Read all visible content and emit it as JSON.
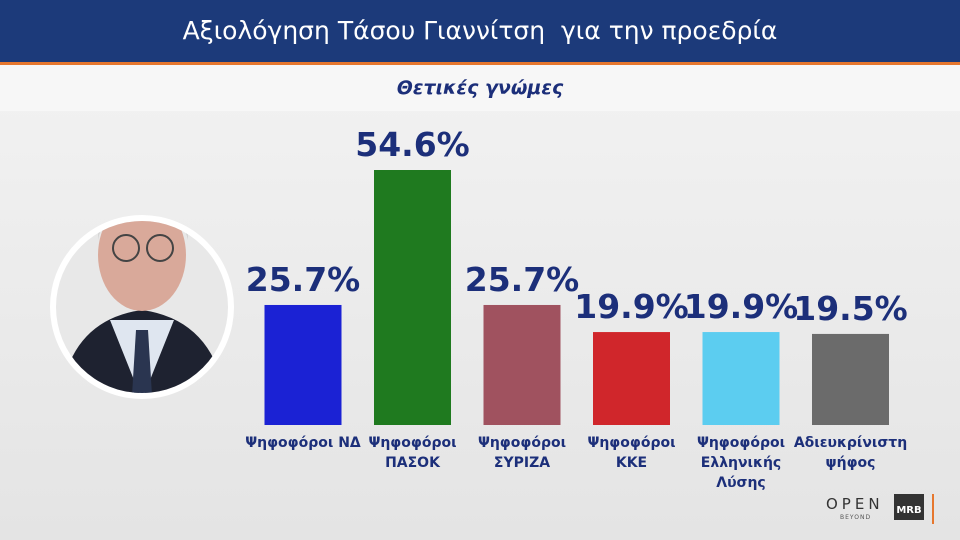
{
  "chart_data": {
    "type": "bar",
    "title": "Αξιολόγηση Τάσου Γιαννίτση  για την προεδρία",
    "subtitle": "Θετικές γνώμες",
    "categories": [
      "Ψηφοφόροι ΝΔ",
      "Ψηφοφόροι ΠΑΣΟΚ",
      "Ψηφοφόροι ΣΥΡΙΖΑ",
      "Ψηφοφόροι ΚΚΕ",
      "Ψηφοφόροι Ελληνικής Λύσης",
      "Αδιευκρίνιστη ψήφος"
    ],
    "values": [
      25.7,
      54.6,
      25.7,
      19.9,
      19.9,
      19.5
    ],
    "value_labels": [
      "25.7%",
      "54.6%",
      "25.7%",
      "19.9%",
      "19.9%",
      "19.5%"
    ],
    "colors": [
      "#1b22d4",
      "#1f7a1f",
      "#a0525f",
      "#d0262b",
      "#5ccdf0",
      "#6b6b6b"
    ]
  },
  "branding": {
    "channel": "OPEN",
    "channel_tagline": "BEYOND",
    "pollster": "MRB"
  }
}
